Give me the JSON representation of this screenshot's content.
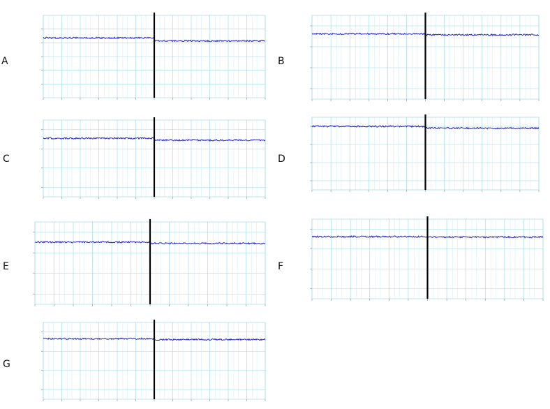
{
  "chart_data": [
    {
      "letter": "A",
      "type": "line",
      "title": "",
      "ylabel": "",
      "ylim": [
        -1500,
        1500
      ],
      "ytick_values": [
        1000,
        500,
        0,
        -500,
        -1000
      ],
      "xlim": [
        -60,
        60
      ],
      "xtick_values": [
        -60,
        -50,
        -40,
        -30,
        -20,
        -10,
        0,
        10,
        20,
        30,
        40,
        50,
        60
      ],
      "split_x": 0,
      "grid": true,
      "before_label": "",
      "after_label": "",
      "series": [
        {
          "x": [
            -60,
            0
          ],
          "y": [
            680,
            680
          ]
        },
        {
          "x": [
            0,
            60
          ],
          "y": [
            570,
            570
          ]
        }
      ]
    },
    {
      "letter": "B",
      "type": "line",
      "title": "",
      "ylabel": "",
      "ylim": [
        -2500,
        1500
      ],
      "ytick_values": [
        1000,
        0,
        -1000,
        -2000
      ],
      "xlim": [
        -60,
        60
      ],
      "xtick_values": [
        -60,
        -50,
        -40,
        -30,
        -20,
        -10,
        0,
        10,
        20,
        30,
        40,
        50,
        60
      ],
      "split_x": 0,
      "grid": true,
      "before_label": "",
      "after_label": "",
      "series": [
        {
          "x": [
            -60,
            0
          ],
          "y": [
            620,
            620
          ]
        },
        {
          "x": [
            0,
            60
          ],
          "y": [
            570,
            570
          ]
        }
      ]
    },
    {
      "letter": "C",
      "type": "line",
      "title": "",
      "ylabel": "",
      "ylim": [
        -2500,
        1500
      ],
      "ytick_values": [
        1000,
        0,
        -1000,
        -2000
      ],
      "xlim": [
        -60,
        60
      ],
      "xtick_values": [
        -60,
        -50,
        -40,
        -30,
        -20,
        -10,
        0,
        10,
        20,
        30,
        40,
        50,
        60
      ],
      "split_x": 0,
      "grid": true,
      "before_label": "",
      "after_label": "",
      "series": [
        {
          "x": [
            -60,
            0
          ],
          "y": [
            550,
            550
          ]
        },
        {
          "x": [
            0,
            60
          ],
          "y": [
            450,
            450
          ]
        }
      ]
    },
    {
      "letter": "D",
      "type": "line",
      "title": "",
      "ylabel": "",
      "ylim": [
        -2500,
        1500
      ],
      "ytick_values": [
        1000,
        0,
        -1000,
        -2000
      ],
      "xlim": [
        -60,
        60
      ],
      "xtick_values": [
        -60,
        -50,
        -40,
        -30,
        -20,
        -10,
        0,
        10,
        20,
        30,
        40,
        50,
        60
      ],
      "split_x": 0,
      "grid": true,
      "before_label": "",
      "after_label": "",
      "series": [
        {
          "x": [
            -60,
            0
          ],
          "y": [
            1000,
            1000
          ]
        },
        {
          "x": [
            0,
            60
          ],
          "y": [
            900,
            900
          ]
        }
      ]
    },
    {
      "letter": "E",
      "type": "line",
      "title": "",
      "ylabel": "",
      "ylim": [
        -2500,
        1500
      ],
      "ytick_values": [
        1000,
        0,
        -1000,
        -2000
      ],
      "xlim": [
        -60,
        60
      ],
      "xtick_values": [
        -60,
        -50,
        -40,
        -30,
        -20,
        -10,
        0,
        10,
        20,
        30,
        40,
        50,
        60
      ],
      "split_x": 0,
      "grid": true,
      "before_label": "",
      "after_label": "",
      "series": [
        {
          "x": [
            -60,
            0
          ],
          "y": [
            520,
            520
          ]
        },
        {
          "x": [
            0,
            60
          ],
          "y": [
            460,
            460
          ]
        }
      ]
    },
    {
      "letter": "F",
      "type": "line",
      "title": "",
      "ylabel": "",
      "ylim": [
        -2500,
        1500
      ],
      "ytick_values": [
        1000,
        0,
        -1000,
        -2000
      ],
      "xlim": [
        -60,
        60
      ],
      "xtick_values": [
        -60,
        -50,
        -40,
        -30,
        -20,
        -10,
        0,
        10,
        20,
        30,
        40,
        50,
        60
      ],
      "split_x": 0,
      "grid": true,
      "before_label": "",
      "after_label": "",
      "series": [
        {
          "x": [
            -60,
            0
          ],
          "y": [
            620,
            620
          ]
        },
        {
          "x": [
            0,
            60
          ],
          "y": [
            600,
            600
          ]
        }
      ]
    },
    {
      "letter": "G",
      "type": "line",
      "title": "",
      "ylabel": "",
      "ylim": [
        -2500,
        1500
      ],
      "ytick_values": [
        1000,
        0,
        -1000,
        -2000
      ],
      "xlim": [
        -60,
        60
      ],
      "xtick_values": [
        -60,
        -50,
        -40,
        -30,
        -20,
        -10,
        0,
        10,
        20,
        30,
        40,
        50,
        60
      ],
      "split_x": 0,
      "grid": true,
      "before_label": "",
      "after_label": "",
      "series": [
        {
          "x": [
            -60,
            0
          ],
          "y": [
            650,
            650
          ]
        },
        {
          "x": [
            0,
            60
          ],
          "y": [
            610,
            610
          ]
        }
      ]
    }
  ]
}
